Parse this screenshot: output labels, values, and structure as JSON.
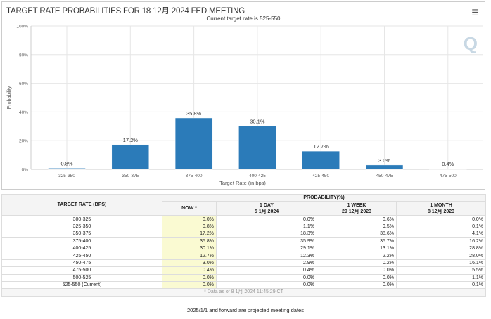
{
  "chart_data": {
    "type": "bar",
    "title": "TARGET RATE PROBABILITIES FOR 18 12月 2024 FED MEETING",
    "subtitle": "Current target rate is 525-550",
    "xlabel": "Target Rate (in bps)",
    "ylabel": "Probability",
    "ylim": [
      0,
      100
    ],
    "yticks": [
      "0%",
      "20%",
      "40%",
      "60%",
      "80%",
      "100%"
    ],
    "categories": [
      "325-350",
      "350-375",
      "375-400",
      "400-425",
      "425-450",
      "450-475",
      "475-500"
    ],
    "values": [
      0.8,
      17.2,
      35.8,
      30.1,
      12.7,
      3.0,
      0.4
    ],
    "labels": [
      "0.8%",
      "17.2%",
      "35.8%",
      "30.1%",
      "12.7%",
      "3.0%",
      "0.4%"
    ],
    "bar_color": "#2b7bb9",
    "grid": true
  },
  "menu_icon": "hamburger-icon",
  "table": {
    "rate_header": "TARGET RATE (BPS)",
    "prob_header": "PROBABILITY(%)",
    "cols": [
      {
        "l1": "NOW *",
        "l2": ""
      },
      {
        "l1": "1 DAY",
        "l2": "5 1月 2024"
      },
      {
        "l1": "1 WEEK",
        "l2": "29 12月 2023"
      },
      {
        "l1": "1 MONTH",
        "l2": "8 12月 2023"
      }
    ],
    "rows": [
      [
        "300-325",
        "0.0%",
        "0.0%",
        "0.6%",
        "0.0%"
      ],
      [
        "325-350",
        "0.8%",
        "1.1%",
        "9.5%",
        "0.1%"
      ],
      [
        "350-375",
        "17.2%",
        "18.3%",
        "38.6%",
        "4.1%"
      ],
      [
        "375-400",
        "35.8%",
        "35.9%",
        "35.7%",
        "16.2%"
      ],
      [
        "400-425",
        "30.1%",
        "29.1%",
        "13.1%",
        "28.8%"
      ],
      [
        "425-450",
        "12.7%",
        "12.3%",
        "2.2%",
        "28.0%"
      ],
      [
        "450-475",
        "3.0%",
        "2.9%",
        "0.2%",
        "16.1%"
      ],
      [
        "475-500",
        "0.4%",
        "0.4%",
        "0.0%",
        "5.5%"
      ],
      [
        "500-525",
        "0.0%",
        "0.0%",
        "0.0%",
        "1.1%"
      ],
      [
        "525-550 (Current)",
        "0.0%",
        "0.0%",
        "0.0%",
        "0.1%"
      ]
    ],
    "footnote": "* Data as of 8 1月 2024 11:45:29 CT"
  },
  "note": "2025/1/1 and forward are projected meeting dates"
}
